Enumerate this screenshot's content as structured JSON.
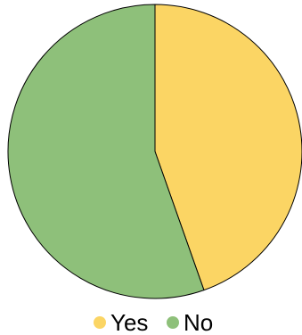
{
  "chart_data": {
    "type": "pie",
    "categories": [
      "Yes",
      "No"
    ],
    "values": [
      44.6,
      55.4
    ],
    "value_unit": "percent",
    "colors": [
      "#fbd564",
      "#8ec07a"
    ],
    "slice_outline_color": "#000000",
    "legend": {
      "position": "bottom",
      "entries": [
        {
          "label": "Yes",
          "color": "#fbd564"
        },
        {
          "label": "No",
          "color": "#8ec07a"
        }
      ]
    },
    "title": ""
  }
}
